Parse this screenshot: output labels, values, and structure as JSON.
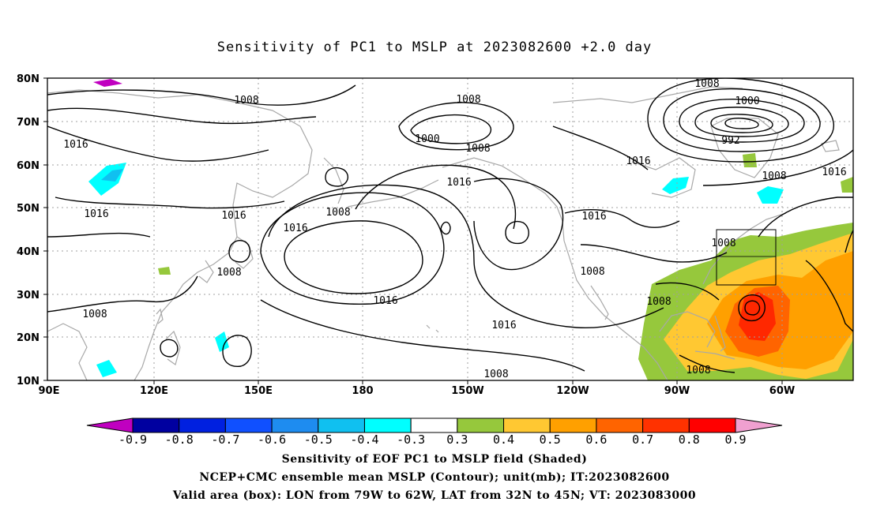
{
  "title": "Sensitivity of PC1 to MSLP at 2023082600 +2.0 day",
  "lat_labels": [
    "80N",
    "70N",
    "60N",
    "50N",
    "40N",
    "30N",
    "20N",
    "10N"
  ],
  "lon_labels": [
    "90E",
    "120E",
    "150E",
    "180",
    "150W",
    "120W",
    "90W",
    "60W"
  ],
  "contour_labels": [
    "1008",
    "1016",
    "1016",
    "1016",
    "1008",
    "1008",
    "1008",
    "1000",
    "1008",
    "1016",
    "1008",
    "1016",
    "1016",
    "1008",
    "1016",
    "1016",
    "1008",
    "1008",
    "1008",
    "1000",
    "992",
    "1008",
    "1016",
    "1016",
    "1008",
    "1008"
  ],
  "colorbar": {
    "labels": [
      "-0.9",
      "-0.8",
      "-0.7",
      "-0.6",
      "-0.5",
      "-0.4",
      "-0.3",
      "0.3",
      "0.4",
      "0.5",
      "0.6",
      "0.7",
      "0.8",
      "0.9"
    ],
    "colors": [
      "#c000c0",
      "#0000a0",
      "#0020e0",
      "#1050ff",
      "#1e8cf0",
      "#10c0f0",
      "#00ffff",
      "#ffffff",
      "#96c83c",
      "#ffc832",
      "#ffa000",
      "#ff6400",
      "#ff3200",
      "#ff0000",
      "#f0a0d0"
    ]
  },
  "footer": {
    "line1": "Sensitivity of EOF PC1 to MSLP field (Shaded)",
    "line2": "NCEP+CMC ensemble mean MSLP (Contour); unit(mb); IT:2023082600",
    "line3": "Valid area (box): LON from 79W to 62W, LAT from 32N to 45N; VT: 2023083000"
  }
}
